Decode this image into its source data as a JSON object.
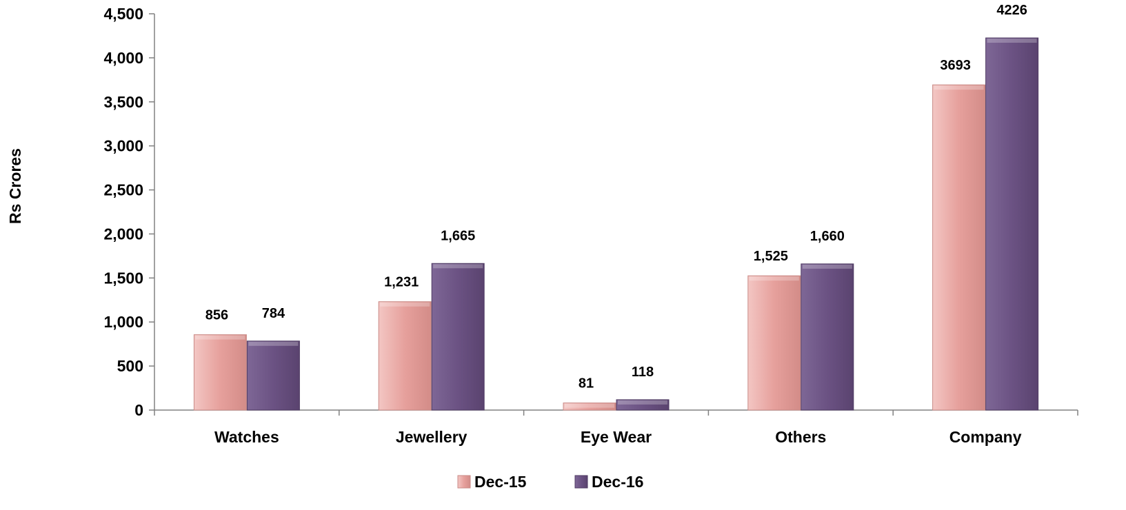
{
  "chart_data": {
    "type": "bar",
    "ylabel": "Rs Crores",
    "categories": [
      "Watches",
      "Jewellery",
      "Eye Wear",
      "Others",
      "Company"
    ],
    "series": [
      {
        "name": "Dec-15",
        "values": [
          856,
          1231,
          81,
          1525,
          3693
        ],
        "labels": [
          "856",
          "1,231",
          "81",
          "1,525",
          "3693"
        ],
        "color": "#E6A09C"
      },
      {
        "name": "Dec-16",
        "values": [
          784,
          1665,
          118,
          1660,
          4226
        ],
        "labels": [
          "784",
          "1,665",
          "118",
          "1,660",
          "4226"
        ],
        "color": "#6B5283"
      }
    ],
    "ylim": [
      0,
      4500
    ],
    "yticks": [
      0,
      500,
      1000,
      1500,
      2000,
      2500,
      3000,
      3500,
      4000,
      4500
    ],
    "ytick_labels": [
      "0",
      "500",
      "1,000",
      "1,500",
      "2,000",
      "2,500",
      "3,000",
      "3,500",
      "4,000",
      "4,500"
    ],
    "grid": false,
    "legend": "bottom"
  }
}
